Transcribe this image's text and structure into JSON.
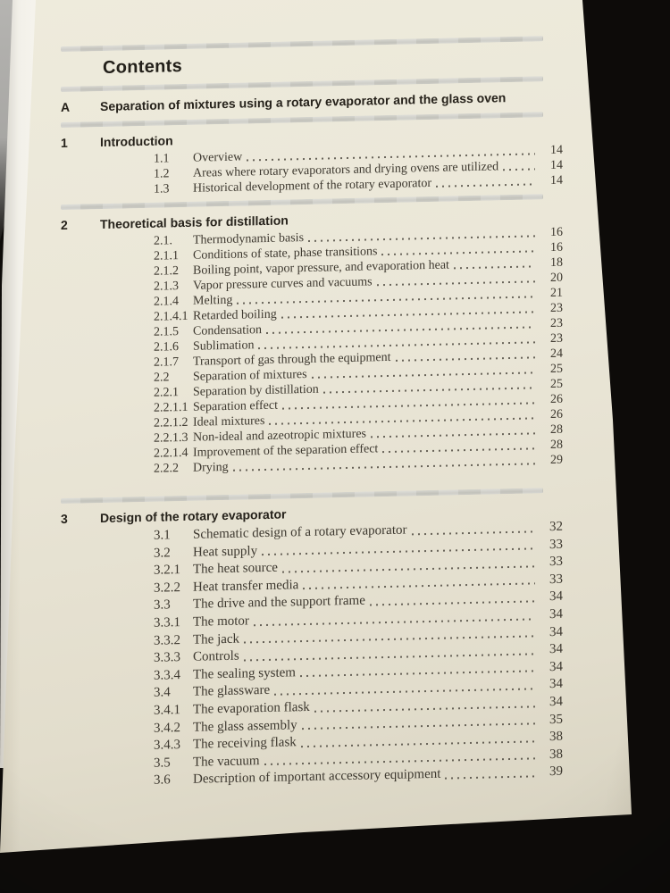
{
  "contents": {
    "title": "Contents",
    "sections": [
      {
        "id": "A",
        "title": "Separation of mixtures using a rotary evaporator and the glass oven",
        "entries": []
      },
      {
        "id": "1",
        "title": "Introduction",
        "entries": [
          {
            "num": "1.1",
            "title": "Overview",
            "page": "14"
          },
          {
            "num": "1.2",
            "title": "Areas where rotary evaporators and drying ovens are utilized",
            "page": "14"
          },
          {
            "num": "1.3",
            "title": "Historical development of the rotary evaporator",
            "page": "14"
          }
        ]
      },
      {
        "id": "2",
        "title": "Theoretical basis for distillation",
        "entries": [
          {
            "num": "2.1.",
            "title": "Thermodynamic basis",
            "page": "16"
          },
          {
            "num": "2.1.1",
            "title": "Conditions of state, phase transitions",
            "page": "16"
          },
          {
            "num": "2.1.2",
            "title": "Boiling point, vapor pressure, and evaporation heat",
            "page": "18"
          },
          {
            "num": "2.1.3",
            "title": "Vapor pressure curves and vacuums",
            "page": "20"
          },
          {
            "num": "2.1.4",
            "title": "Melting",
            "page": "21"
          },
          {
            "num": "2.1.4.1",
            "title": "Retarded boiling",
            "page": "23"
          },
          {
            "num": "2.1.5",
            "title": "Condensation",
            "page": "23"
          },
          {
            "num": "2.1.6",
            "title": "Sublimation",
            "page": "23"
          },
          {
            "num": "2.1.7",
            "title": "Transport of gas through the equipment",
            "page": "24"
          },
          {
            "num": "2.2",
            "title": "Separation of mixtures",
            "page": "25"
          },
          {
            "num": "2.2.1",
            "title": "Separation by distillation",
            "page": "25"
          },
          {
            "num": "2.2.1.1",
            "title": "Separation effect",
            "page": "26"
          },
          {
            "num": "2.2.1.2",
            "title": "Ideal mixtures",
            "page": "26"
          },
          {
            "num": "2.2.1.3",
            "title": "Non-ideal and azeotropic mixtures",
            "page": "28"
          },
          {
            "num": "2.2.1.4",
            "title": "Improvement of the separation effect",
            "page": "28"
          },
          {
            "num": "2.2.2",
            "title": "Drying",
            "page": "29"
          }
        ]
      },
      {
        "id": "3",
        "title": "Design of the rotary evaporator",
        "entries": [
          {
            "num": "3.1",
            "title": "Schematic design of a rotary evaporator",
            "page": "32"
          },
          {
            "num": "3.2",
            "title": "Heat supply",
            "page": "33"
          },
          {
            "num": "3.2.1",
            "title": "The heat source",
            "page": "33"
          },
          {
            "num": "3.2.2",
            "title": "Heat transfer media",
            "page": "33"
          },
          {
            "num": "3.3",
            "title": "The drive and the support frame",
            "page": "34"
          },
          {
            "num": "3.3.1",
            "title": "The motor",
            "page": "34"
          },
          {
            "num": "3.3.2",
            "title": "The jack",
            "page": "34"
          },
          {
            "num": "3.3.3",
            "title": "Controls",
            "page": "34"
          },
          {
            "num": "3.3.4",
            "title": "The sealing system",
            "page": "34"
          },
          {
            "num": "3.4",
            "title": "The glassware",
            "page": "34"
          },
          {
            "num": "3.4.1",
            "title": "The evaporation flask",
            "page": "34"
          },
          {
            "num": "3.4.2",
            "title": "The glass assembly",
            "page": "35"
          },
          {
            "num": "3.4.3",
            "title": "The receiving flask",
            "page": "38"
          },
          {
            "num": "3.5",
            "title": "The vacuum",
            "page": "38"
          },
          {
            "num": "3.6",
            "title": "Description of important accessory equipment",
            "page": "39"
          }
        ]
      }
    ]
  },
  "colors": {
    "page": "#eae6d7",
    "divider_bar": "#c6c6c0",
    "text": "#3d382f",
    "heading_text": "#26221b",
    "background_leather": "#1d1915",
    "page_edge": "#f2f0e9"
  }
}
